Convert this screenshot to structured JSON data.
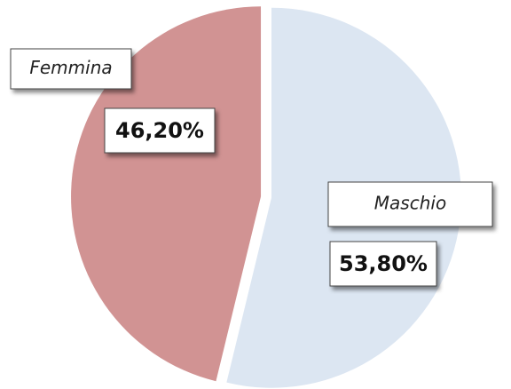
{
  "chart_data": {
    "type": "pie",
    "categories": [
      "Maschio",
      "Femmina"
    ],
    "values": [
      53.8,
      46.2
    ],
    "value_labels": [
      "53,80%",
      "46,20%"
    ],
    "colors": [
      "#dce6f2",
      "#d19393"
    ],
    "start_angle": 90,
    "direction": "clockwise"
  }
}
